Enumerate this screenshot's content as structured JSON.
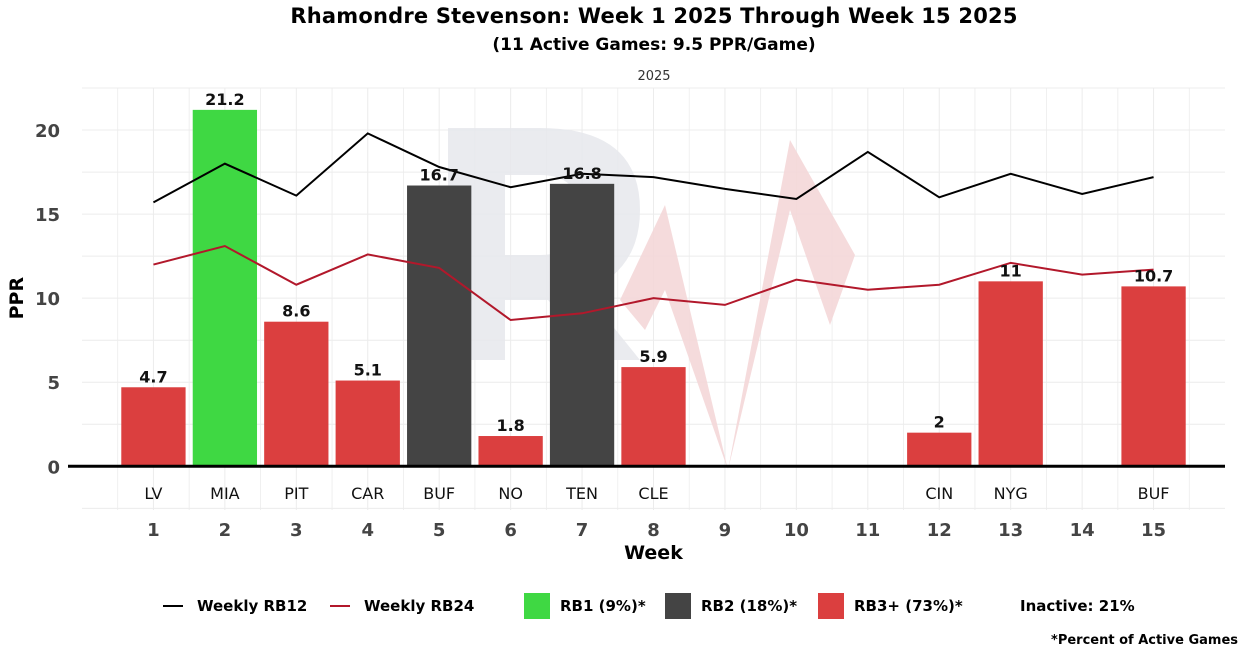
{
  "chart_data": {
    "type": "bar",
    "title": "Rhamondre Stevenson: Week 1 2025 Through Week 15 2025",
    "subtitle": "(11 Active Games: 9.5 PPR/Game)",
    "facet_label": "2025",
    "xlabel": "Week",
    "ylabel": "PPR",
    "xlim": [
      0,
      16
    ],
    "ylim": [
      -2.6,
      22.5
    ],
    "x_ticks": [
      1,
      2,
      3,
      4,
      5,
      6,
      7,
      8,
      9,
      10,
      11,
      12,
      13,
      14,
      15
    ],
    "y_ticks": [
      0,
      5,
      10,
      15,
      20
    ],
    "grid": true,
    "bars": [
      {
        "week": 1,
        "opponent": "LV",
        "value": 4.7,
        "tier": "RB3+"
      },
      {
        "week": 2,
        "opponent": "MIA",
        "value": 21.2,
        "tier": "RB1"
      },
      {
        "week": 3,
        "opponent": "PIT",
        "value": 8.6,
        "tier": "RB3+"
      },
      {
        "week": 4,
        "opponent": "CAR",
        "value": 5.1,
        "tier": "RB3+"
      },
      {
        "week": 5,
        "opponent": "BUF",
        "value": 16.7,
        "tier": "RB2"
      },
      {
        "week": 6,
        "opponent": "NO",
        "value": 1.8,
        "tier": "RB3+"
      },
      {
        "week": 7,
        "opponent": "TEN",
        "value": 16.8,
        "tier": "RB2"
      },
      {
        "week": 8,
        "opponent": "CLE",
        "value": 5.9,
        "tier": "RB3+"
      },
      {
        "week": 12,
        "opponent": "CIN",
        "value": 2,
        "tier": "RB3+"
      },
      {
        "week": 13,
        "opponent": "NYG",
        "value": 11,
        "tier": "RB3+"
      },
      {
        "week": 15,
        "opponent": "BUF",
        "value": 10.7,
        "tier": "RB3+"
      }
    ],
    "data_labels": [
      "4.7",
      "21.2",
      "8.6",
      "5.1",
      "16.7",
      "1.8",
      "16.8",
      "5.9",
      "2",
      "11",
      "10.7"
    ],
    "series": [
      {
        "name": "Weekly RB12",
        "color": "#000000",
        "x": [
          1,
          2,
          3,
          4,
          5,
          6,
          7,
          8,
          9,
          10,
          11,
          12,
          13,
          14,
          15
        ],
        "values": [
          15.7,
          18.0,
          16.1,
          19.8,
          17.8,
          16.6,
          17.4,
          17.2,
          16.5,
          15.9,
          18.7,
          16.0,
          17.4,
          16.2,
          17.2
        ]
      },
      {
        "name": "Weekly RB24",
        "color": "#b2182b",
        "x": [
          1,
          2,
          3,
          4,
          5,
          6,
          7,
          8,
          9,
          10,
          11,
          12,
          13,
          14,
          15
        ],
        "values": [
          12.0,
          13.1,
          10.8,
          12.6,
          11.8,
          8.7,
          9.1,
          10.0,
          9.6,
          11.1,
          10.5,
          10.8,
          12.1,
          11.4,
          11.7
        ]
      }
    ],
    "tier_colors": {
      "RB1": "#3fd843",
      "RB2": "#444444",
      "RB3+": "#db3f3f"
    },
    "legend": {
      "placement": "bottom",
      "items": [
        {
          "label": "Weekly RB12",
          "kind": "line",
          "color": "#000000"
        },
        {
          "label": "Weekly RB24",
          "kind": "line",
          "color": "#b2182b"
        },
        {
          "label": "RB1 (9%)*",
          "kind": "box",
          "color": "#3fd843"
        },
        {
          "label": "RB2 (18%)*",
          "kind": "box",
          "color": "#444444"
        },
        {
          "label": "RB3+ (73%)*",
          "kind": "box",
          "color": "#db3f3f"
        },
        {
          "label": "Inactive: 21%",
          "kind": "text"
        }
      ]
    },
    "footnote": "*Percent of Active Games"
  }
}
